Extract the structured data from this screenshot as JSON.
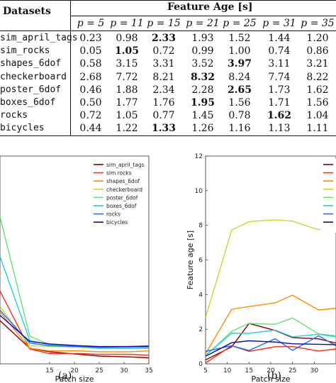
{
  "table": {
    "col_datasets": "Datasets",
    "col_feature_age": "Feature Age [s]",
    "p_headers": [
      "p = 5",
      "p = 11",
      "p = 15",
      "p = 21",
      "p = 25",
      "p = 31",
      "p = 35"
    ],
    "rows": [
      {
        "name": "sim_april_tags",
        "values": [
          "0.23",
          "0.98",
          "2.33",
          "1.93",
          "1.52",
          "1.44",
          "1.20"
        ],
        "bold": 2
      },
      {
        "name": "sim_rocks",
        "values": [
          "0.05",
          "1.05",
          "0.72",
          "0.99",
          "1.00",
          "0.74",
          "0.86"
        ],
        "bold": 1
      },
      {
        "name": "shapes_6dof",
        "values": [
          "0.58",
          "3.15",
          "3.31",
          "3.52",
          "3.97",
          "3.11",
          "3.21"
        ],
        "bold": 4
      },
      {
        "name": "checkerboard",
        "values": [
          "2.68",
          "7.72",
          "8.21",
          "8.32",
          "8.24",
          "7.74",
          "8.22"
        ],
        "bold": 3
      },
      {
        "name": "poster_6dof",
        "values": [
          "0.46",
          "1.88",
          "2.34",
          "2.28",
          "2.65",
          "1.73",
          "1.62"
        ],
        "bold": 4
      },
      {
        "name": "boxes_6dof",
        "values": [
          "0.50",
          "1.77",
          "1.76",
          "1.95",
          "1.56",
          "1.71",
          "1.56"
        ],
        "bold": 3
      },
      {
        "name": "rocks",
        "values": [
          "0.72",
          "1.05",
          "0.77",
          "1.45",
          "0.78",
          "1.62",
          "1.04"
        ],
        "bold": 5
      },
      {
        "name": "bicycles",
        "values": [
          "0.44",
          "1.22",
          "1.33",
          "1.26",
          "1.16",
          "1.13",
          "1.11"
        ],
        "bold": 2
      }
    ]
  },
  "chart_data": [
    {
      "type": "line",
      "xlabel": "Patch size",
      "ylabel": "",
      "xlim": [
        5,
        35
      ],
      "xticks": [
        15,
        20,
        25,
        30,
        35
      ],
      "caption": "(a)",
      "legend_position": "top-right",
      "x": [
        5,
        11,
        15,
        21,
        25,
        31,
        35
      ],
      "series": [
        {
          "name": "sim_april_tags",
          "color": "#8b0000",
          "values": [
            2.5,
            0.9,
            0.7,
            0.55,
            0.45,
            0.4,
            0.35
          ]
        },
        {
          "name": "sim rocks",
          "color": "#ff2a1a",
          "values": [
            4.2,
            0.85,
            0.6,
            0.6,
            0.55,
            0.55,
            0.5
          ]
        },
        {
          "name": "shapes_6dof",
          "color": "#ff8c00",
          "values": [
            3.0,
            0.9,
            0.75,
            0.75,
            0.7,
            0.7,
            0.75
          ]
        },
        {
          "name": "checkerboard",
          "color": "#c8d832",
          "values": [
            3.3,
            1.05,
            1.0,
            0.95,
            0.9,
            0.9,
            0.95
          ]
        },
        {
          "name": "poster_6dof",
          "color": "#66e07a",
          "values": [
            8.5,
            1.6,
            1.1,
            1.0,
            0.95,
            0.95,
            1.0
          ]
        },
        {
          "name": "boxes_6dof",
          "color": "#22cfe0",
          "values": [
            6.2,
            1.35,
            1.1,
            1.0,
            0.9,
            0.9,
            0.9
          ]
        },
        {
          "name": "rocks",
          "color": "#1e6fff",
          "values": [
            3.1,
            1.2,
            1.05,
            1.0,
            0.95,
            1.0,
            1.05
          ]
        },
        {
          "name": "bicycles",
          "color": "#0a0ab4",
          "values": [
            2.8,
            1.3,
            1.15,
            1.05,
            1.0,
            1.0,
            1.0
          ]
        }
      ]
    },
    {
      "type": "line",
      "xlabel": "Patch size",
      "ylabel": "Feature age [s]",
      "xlim": [
        5,
        35
      ],
      "ylim": [
        0,
        12
      ],
      "xticks": [
        5,
        10,
        15,
        20,
        25,
        30
      ],
      "yticks": [
        0,
        2,
        4,
        6,
        8,
        10,
        12
      ],
      "caption": "(b)",
      "legend_position": "top-right",
      "x": [
        5,
        11,
        15,
        21,
        25,
        31,
        35
      ],
      "series": [
        {
          "name": "sim_a",
          "color": "#8b0000",
          "values": [
            0.23,
            0.98,
            2.33,
            1.93,
            1.52,
            1.44,
            1.2
          ]
        },
        {
          "name": "sim",
          "color": "#ff2a1a",
          "values": [
            0.05,
            1.05,
            0.72,
            0.99,
            1.0,
            0.74,
            0.86
          ]
        },
        {
          "name": "shap",
          "color": "#ff8c00",
          "values": [
            0.58,
            3.15,
            3.31,
            3.52,
            3.97,
            3.11,
            3.21
          ]
        },
        {
          "name": "chec",
          "color": "#c8d832",
          "values": [
            2.68,
            7.72,
            8.21,
            8.32,
            8.24,
            7.74,
            8.22
          ]
        },
        {
          "name": "post",
          "color": "#66e07a",
          "values": [
            0.46,
            1.88,
            2.34,
            2.28,
            2.65,
            1.73,
            1.62
          ]
        },
        {
          "name": "boxe",
          "color": "#22cfe0",
          "values": [
            0.5,
            1.77,
            1.76,
            1.95,
            1.56,
            1.71,
            1.56
          ]
        },
        {
          "name": "rock",
          "color": "#1e6fff",
          "values": [
            0.72,
            1.05,
            0.77,
            1.45,
            0.78,
            1.62,
            1.04
          ]
        },
        {
          "name": "bicy",
          "color": "#0a0ab4",
          "values": [
            0.44,
            1.22,
            1.33,
            1.26,
            1.16,
            1.13,
            1.11
          ]
        }
      ]
    }
  ]
}
